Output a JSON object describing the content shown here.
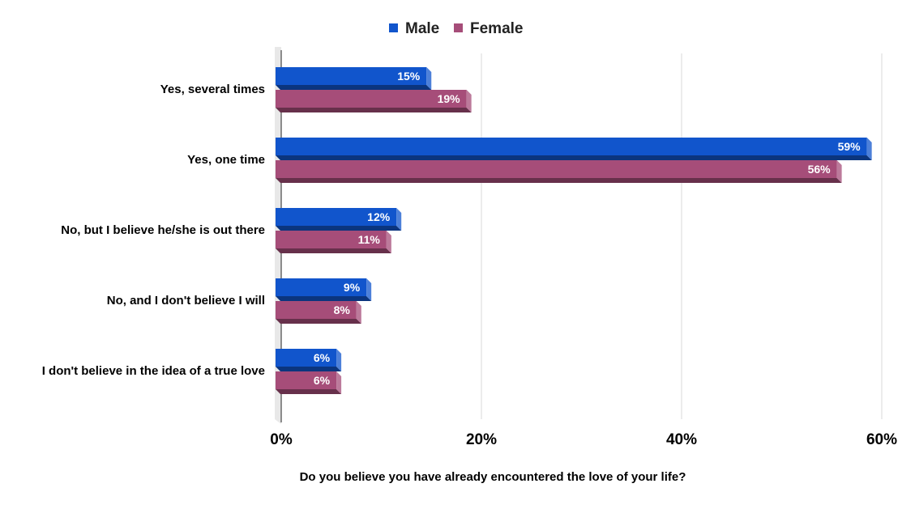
{
  "chart_data": {
    "type": "bar",
    "orientation": "horizontal",
    "style": "3d",
    "categories": [
      "Yes, several times",
      "Yes, one time",
      "No, but I believe he/she is out there",
      "No, and I don't believe I will",
      "I don't believe in the idea of a true love"
    ],
    "series": [
      {
        "name": "Male",
        "color": "#1155cc",
        "values": [
          15,
          59,
          12,
          9,
          6
        ],
        "labels": [
          "15%",
          "59%",
          "12%",
          "9%",
          "6%"
        ]
      },
      {
        "name": "Female",
        "color": "#a64d79",
        "values": [
          19,
          56,
          11,
          8,
          6
        ],
        "labels": [
          "19%",
          "56%",
          "11%",
          "8%",
          "6%"
        ]
      }
    ],
    "xlabel": "Do you believe you have already encountered the love of your life?",
    "ylabel": "",
    "xlim": [
      0,
      60
    ],
    "xticks": [
      0,
      20,
      40,
      60
    ],
    "xtick_labels": [
      "0%",
      "20%",
      "40%",
      "60%"
    ],
    "grid": true,
    "legend_position": "top-center"
  }
}
